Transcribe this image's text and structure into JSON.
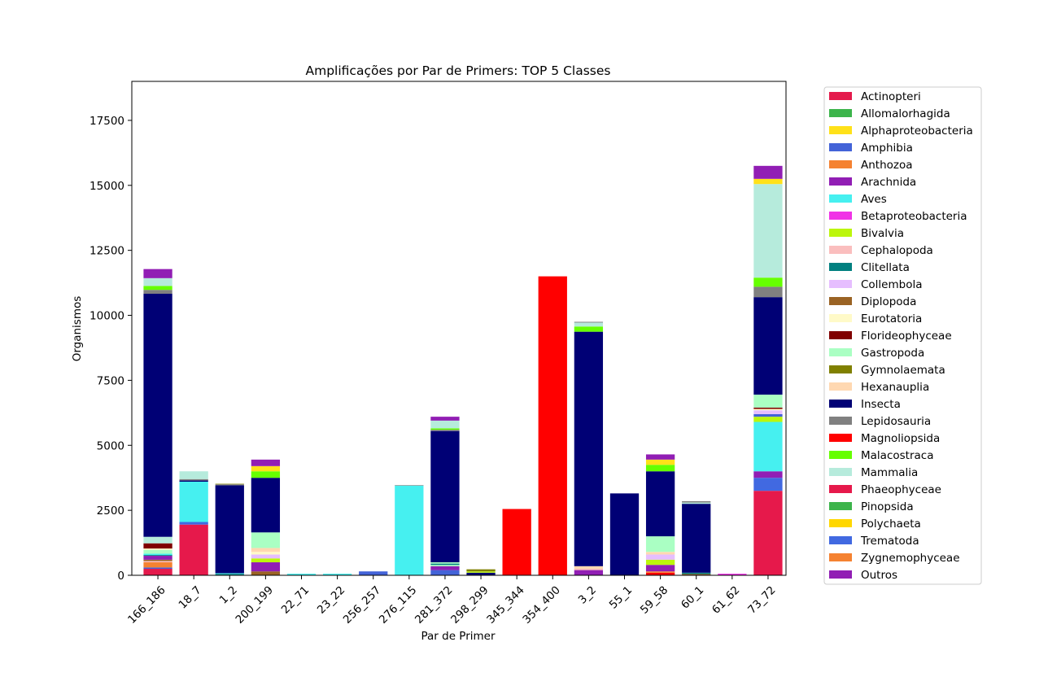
{
  "chart_data": {
    "type": "bar",
    "stacked": true,
    "title": "Amplificações por Par de Primers: TOP 5 Classes",
    "xlabel": "Par de Primer",
    "ylabel": "Organismos",
    "ylim": [
      0,
      19000
    ],
    "yticks": [
      0,
      2500,
      5000,
      7500,
      10000,
      12500,
      15000,
      17500
    ],
    "ytick_labels": [
      "0",
      "2500",
      "5000",
      "7500",
      "10000",
      "12500",
      "15000",
      "17500"
    ],
    "grid": false,
    "legend_position": "outside-right",
    "categories": [
      "166_186",
      "18_7",
      "1_2",
      "200_199",
      "22_71",
      "23_22",
      "256_257",
      "276_115",
      "281_372",
      "298_299",
      "345_344",
      "354_400",
      "3_2",
      "55_1",
      "59_58",
      "60_1",
      "61_62",
      "73_72"
    ],
    "classes": [
      {
        "name": "Actinopteri",
        "color": "#e41a4c"
      },
      {
        "name": "Allomalorhagida",
        "color": "#3cb44b"
      },
      {
        "name": "Alphaproteobacteria",
        "color": "#ffe119"
      },
      {
        "name": "Amphibia",
        "color": "#4363d8"
      },
      {
        "name": "Anthozoa",
        "color": "#f58231"
      },
      {
        "name": "Arachnida",
        "color": "#911eb4"
      },
      {
        "name": "Aves",
        "color": "#46f0f0"
      },
      {
        "name": "Betaproteobacteria",
        "color": "#f032e6"
      },
      {
        "name": "Bivalvia",
        "color": "#bcf60c"
      },
      {
        "name": "Cephalopoda",
        "color": "#fabebe"
      },
      {
        "name": "Clitellata",
        "color": "#008080"
      },
      {
        "name": "Collembola",
        "color": "#e6beff"
      },
      {
        "name": "Diplopoda",
        "color": "#9a6324"
      },
      {
        "name": "Eurotatoria",
        "color": "#fffac8"
      },
      {
        "name": "Florideophyceae",
        "color": "#800000"
      },
      {
        "name": "Gastropoda",
        "color": "#aaffc3"
      },
      {
        "name": "Gymnolaemata",
        "color": "#808000"
      },
      {
        "name": "Hexanauplia",
        "color": "#ffd8b1"
      },
      {
        "name": "Insecta",
        "color": "#000075"
      },
      {
        "name": "Lepidosauria",
        "color": "#808080"
      },
      {
        "name": "Magnoliopsida",
        "color": "#ff0000"
      },
      {
        "name": "Malacostraca",
        "color": "#66ff00"
      },
      {
        "name": "Mammalia",
        "color": "#b6ebdc"
      },
      {
        "name": "Phaeophyceae",
        "color": "#e6194b"
      },
      {
        "name": "Pinopsida",
        "color": "#3cb44b"
      },
      {
        "name": "Polychaeta",
        "color": "#ffd700"
      },
      {
        "name": "Trematoda",
        "color": "#4169e1"
      },
      {
        "name": "Zygnemophyceae",
        "color": "#f58231"
      },
      {
        "name": "Outros",
        "color": "#911eb4"
      }
    ],
    "stacks": [
      [
        [
          "Actinopteri",
          250
        ],
        [
          "Amphibia",
          50
        ],
        [
          "Anthozoa",
          200
        ],
        [
          "Cephalopoda",
          50
        ],
        [
          "Diplopoda",
          50
        ],
        [
          "Arachnida",
          150
        ],
        [
          "Clitellata",
          30
        ],
        [
          "Aves",
          50
        ],
        [
          "Gastropoda",
          150
        ],
        [
          "Eurotatoria",
          50
        ],
        [
          "Florideophyceae",
          200
        ],
        [
          "Mammalia",
          250
        ],
        [
          "Insecta",
          9350
        ],
        [
          "Lepidosauria",
          150
        ],
        [
          "Malacostraca",
          150
        ],
        [
          "Mammalia",
          300
        ],
        [
          "Outros",
          350
        ]
      ],
      [
        [
          "Phaeophyceae",
          1950
        ],
        [
          "Trematoda",
          100
        ],
        [
          "Aves",
          1550
        ],
        [
          "Insecta",
          50
        ],
        [
          "Lepidosauria",
          50
        ],
        [
          "Mammalia",
          300
        ]
      ],
      [
        [
          "Clitellata",
          50
        ],
        [
          "Aves",
          30
        ],
        [
          "Insecta",
          3380
        ],
        [
          "Lepidosauria",
          40
        ],
        [
          "Gymnolaemata",
          20
        ]
      ],
      [
        [
          "Diplopoda",
          150
        ],
        [
          "Arachnida",
          350
        ],
        [
          "Bivalvia",
          150
        ],
        [
          "Collembola",
          150
        ],
        [
          "Eurotatoria",
          100
        ],
        [
          "Hexanauplia",
          150
        ],
        [
          "Gastropoda",
          600
        ],
        [
          "Insecta",
          2100
        ],
        [
          "Malacostraca",
          250
        ],
        [
          "Alphaproteobacteria",
          200
        ],
        [
          "Outros",
          250
        ]
      ],
      [
        [
          "Aves",
          60
        ]
      ],
      [
        [
          "Aves",
          60
        ]
      ],
      [
        [
          "Amphibia",
          150
        ]
      ],
      [
        [
          "Aves",
          3450
        ],
        [
          "Lepidosauria",
          20
        ]
      ],
      [
        [
          "Amphibia",
          200
        ],
        [
          "Arachnida",
          150
        ],
        [
          "Gastropoda",
          50
        ],
        [
          "Clitellata",
          50
        ],
        [
          "Gastropoda",
          50
        ],
        [
          "Insecta",
          5050
        ],
        [
          "Lepidosauria",
          50
        ],
        [
          "Malacostraca",
          50
        ],
        [
          "Mammalia",
          300
        ],
        [
          "Outros",
          150
        ]
      ],
      [
        [
          "Insecta",
          100
        ],
        [
          "Bivalvia",
          50
        ],
        [
          "Gymnolaemata",
          80
        ]
      ],
      [
        [
          "Magnoliopsida",
          2550
        ]
      ],
      [
        [
          "Magnoliopsida",
          11500
        ]
      ],
      [
        [
          "Arachnida",
          200
        ],
        [
          "Cephalopoda",
          50
        ],
        [
          "Hexanauplia",
          100
        ],
        [
          "Insecta",
          9020
        ],
        [
          "Malacostraca",
          200
        ],
        [
          "Mammalia",
          150
        ],
        [
          "Lepidosauria",
          30
        ]
      ],
      [
        [
          "Insecta",
          3150
        ]
      ],
      [
        [
          "Magnoliopsida",
          100
        ],
        [
          "Anthozoa",
          50
        ],
        [
          "Arachnida",
          250
        ],
        [
          "Bivalvia",
          200
        ],
        [
          "Collembola",
          200
        ],
        [
          "Hexanauplia",
          100
        ],
        [
          "Gastropoda",
          600
        ],
        [
          "Insecta",
          2500
        ],
        [
          "Malacostraca",
          250
        ],
        [
          "Alphaproteobacteria",
          200
        ],
        [
          "Outros",
          200
        ]
      ],
      [
        [
          "Diplopoda",
          50
        ],
        [
          "Clitellata",
          50
        ],
        [
          "Insecta",
          2650
        ],
        [
          "Mammalia",
          50
        ],
        [
          "Lepidosauria",
          50
        ]
      ],
      [
        [
          "Betaproteobacteria",
          60
        ]
      ],
      [
        [
          "Phaeophyceae",
          3250
        ],
        [
          "Trematoda",
          500
        ],
        [
          "Arachnida",
          250
        ],
        [
          "Aves",
          1900
        ],
        [
          "Bivalvia",
          200
        ],
        [
          "Amphibia",
          100
        ],
        [
          "Collembola",
          150
        ],
        [
          "Eurotatoria",
          50
        ],
        [
          "Florideophyceae",
          50
        ],
        [
          "Gastropoda",
          500
        ],
        [
          "Insecta",
          3750
        ],
        [
          "Lepidosauria",
          400
        ],
        [
          "Malacostraca",
          350
        ],
        [
          "Mammalia",
          3600
        ],
        [
          "Alphaproteobacteria",
          200
        ],
        [
          "Outros",
          500
        ]
      ]
    ]
  }
}
